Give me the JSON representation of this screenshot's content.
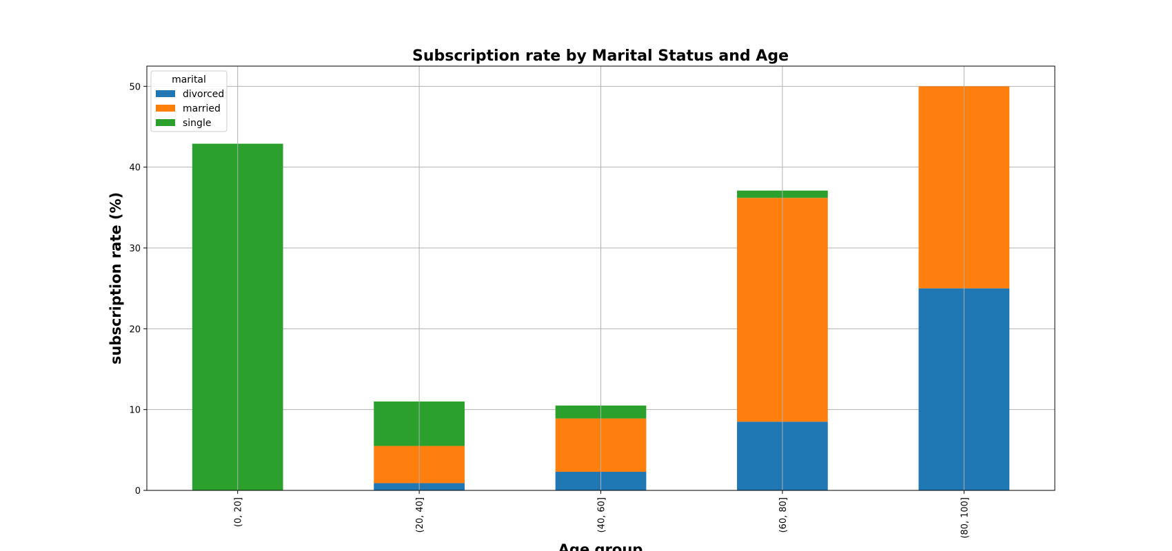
{
  "chart_data": {
    "type": "bar",
    "stacked": true,
    "title": "Subscription rate by Marital Status and Age",
    "xlabel": "Age group",
    "ylabel": "subscription rate (%)",
    "categories": [
      "(0, 20]",
      "(20, 40]",
      "(40, 60]",
      "(60, 80]",
      "(80, 100]"
    ],
    "series": [
      {
        "name": "divorced",
        "color": "#1f77b4",
        "values": [
          0,
          0.9,
          2.3,
          8.5,
          25.0
        ]
      },
      {
        "name": "married",
        "color": "#ff7f0e",
        "values": [
          0,
          4.6,
          6.6,
          27.7,
          25.0
        ]
      },
      {
        "name": "single",
        "color": "#2ca02c",
        "values": [
          42.9,
          5.5,
          1.6,
          0.9,
          0
        ]
      }
    ],
    "ylim": [
      0,
      52.5
    ],
    "yticks": [
      0,
      10,
      20,
      30,
      40,
      50
    ],
    "grid": true,
    "legend": {
      "title": "marital",
      "placement": "top-left"
    }
  }
}
